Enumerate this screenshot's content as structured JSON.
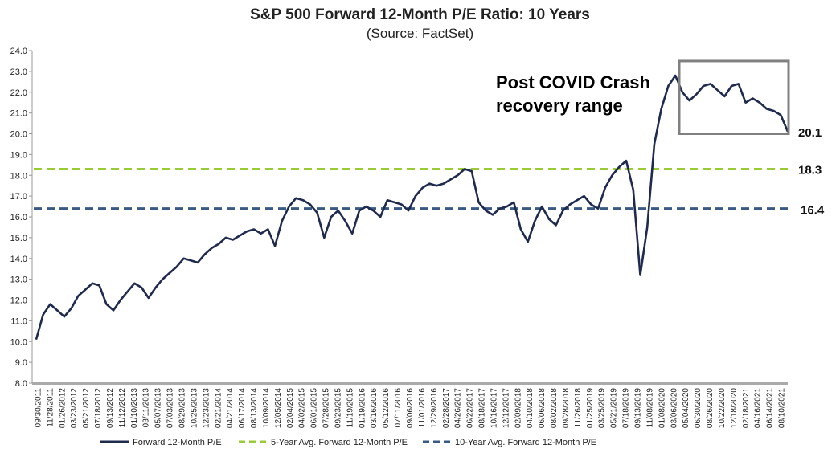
{
  "chart_data": {
    "type": "line",
    "title": "S&P 500 Forward 12-Month P/E Ratio: 10 Years",
    "subtitle": "(Source: FactSet)",
    "xlabel": "",
    "ylabel": "",
    "ylim": [
      8.0,
      24.0
    ],
    "yticks": [
      "24.0",
      "23.0",
      "22.0",
      "21.0",
      "20.0",
      "19.0",
      "18.0",
      "17.0",
      "16.0",
      "15.0",
      "14.0",
      "13.0",
      "12.0",
      "11.0",
      "10.0",
      "9.0",
      "8.0"
    ],
    "x_tick_labels": [
      "09/30/2011",
      "11/28/2011",
      "01/26/2012",
      "03/23/2012",
      "05/21/2012",
      "07/18/2012",
      "09/13/2012",
      "11/12/2012",
      "01/10/2013",
      "03/11/2013",
      "05/07/2013",
      "07/03/2013",
      "08/29/2013",
      "10/25/2013",
      "12/23/2013",
      "02/21/2014",
      "04/21/2014",
      "06/17/2014",
      "08/13/2014",
      "10/09/2014",
      "12/05/2014",
      "02/04/2015",
      "04/02/2015",
      "06/01/2015",
      "07/28/2015",
      "09/23/2015",
      "11/19/2015",
      "01/19/2016",
      "03/16/2016",
      "05/12/2016",
      "07/11/2016",
      "09/06/2016",
      "11/01/2016",
      "12/29/2016",
      "02/28/2017",
      "04/26/2017",
      "06/22/2017",
      "08/18/2017",
      "10/16/2017",
      "12/12/2017",
      "02/09/2018",
      "04/10/2018",
      "06/06/2018",
      "08/02/2018",
      "09/28/2018",
      "11/26/2018",
      "01/25/2019",
      "03/25/2019",
      "05/21/2019",
      "07/18/2019",
      "09/13/2019",
      "11/08/2019",
      "01/08/2020",
      "03/06/2020",
      "05/04/2020",
      "06/30/2020",
      "08/26/2020",
      "10/22/2020",
      "12/18/2020",
      "02/18/2021",
      "04/16/2021",
      "06/14/2021",
      "08/10/2021"
    ],
    "grid": false,
    "legend_position": "bottom",
    "series": [
      {
        "name": "Forward 12-Month P/E",
        "color": "#1f2a4f",
        "style": "solid",
        "values": [
          10.1,
          11.3,
          11.8,
          11.5,
          11.2,
          11.6,
          12.2,
          12.5,
          12.8,
          12.7,
          11.8,
          11.5,
          12.0,
          12.4,
          12.8,
          12.6,
          12.1,
          12.6,
          13.0,
          13.3,
          13.6,
          14.0,
          13.9,
          13.8,
          14.2,
          14.5,
          14.7,
          15.0,
          14.9,
          15.1,
          15.3,
          15.4,
          15.2,
          15.4,
          14.6,
          15.8,
          16.5,
          16.9,
          16.8,
          16.6,
          16.2,
          15.0,
          16.0,
          16.3,
          15.8,
          15.2,
          16.3,
          16.5,
          16.3,
          16.0,
          16.8,
          16.7,
          16.6,
          16.3,
          17.0,
          17.4,
          17.6,
          17.5,
          17.6,
          17.8,
          18.0,
          18.3,
          18.2,
          16.7,
          16.3,
          16.1,
          16.4,
          16.5,
          16.7,
          15.4,
          14.8,
          15.8,
          16.5,
          15.9,
          15.6,
          16.3,
          16.6,
          16.8,
          17.0,
          16.6,
          16.4,
          17.4,
          18.0,
          18.4,
          18.7,
          17.3,
          13.2,
          15.5,
          19.5,
          21.2,
          22.3,
          22.8,
          22.0,
          21.6,
          21.9,
          22.3,
          22.4,
          22.1,
          21.8,
          22.3,
          22.4,
          21.5,
          21.7,
          21.5,
          21.2,
          21.1,
          20.9,
          20.1
        ]
      },
      {
        "name": "5-Year Avg. Forward 12-Month P/E",
        "color": "#99cc33",
        "style": "dashed",
        "value": 18.3
      },
      {
        "name": "10-Year Avg. Forward 12-Month P/E",
        "color": "#3a5a86",
        "style": "dashed",
        "value": 16.4
      }
    ],
    "annotations": [
      {
        "text_line1": "Post COVID Crash",
        "text_line2": "recovery range"
      },
      {
        "text": "20.1"
      },
      {
        "text": "18.3"
      },
      {
        "text": "16.4"
      }
    ]
  }
}
